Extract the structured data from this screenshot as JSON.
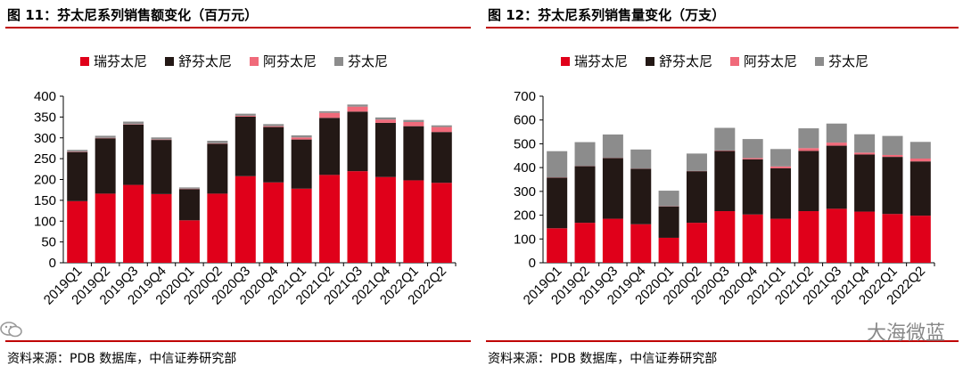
{
  "panels": [
    {
      "title": "图 11：芬太尼系列销售额变化（百万元）",
      "source": "资料来源：PDB 数据库，中信证券研究部"
    },
    {
      "title": "图 12：芬太尼系列销售量变化（万支）",
      "source": "资料来源：PDB 数据库，中信证券研究部"
    }
  ],
  "watermark": "大海微蓝",
  "colors": {
    "瑞芬太尼": "#e0001a",
    "舒芬太尼": "#231815",
    "阿芬太尼": "#f06a7a",
    "芬太尼": "#8c8c8c"
  },
  "chart_data": [
    {
      "type": "bar",
      "stacked": true,
      "title": "图 11：芬太尼系列销售额变化（百万元）",
      "categories": [
        "2019Q1",
        "2019Q2",
        "2019Q3",
        "2019Q4",
        "2020Q1",
        "2020Q2",
        "2020Q3",
        "2020Q4",
        "2021Q1",
        "2021Q2",
        "2021Q3",
        "2021Q4",
        "2022Q1",
        "2022Q2"
      ],
      "series": [
        {
          "name": "瑞芬太尼",
          "values": [
            148,
            166,
            187,
            165,
            102,
            166,
            208,
            193,
            178,
            211,
            220,
            206,
            198,
            192
          ]
        },
        {
          "name": "舒芬太尼",
          "values": [
            118,
            133,
            145,
            130,
            75,
            120,
            143,
            133,
            118,
            137,
            143,
            130,
            130,
            122
          ]
        },
        {
          "name": "阿芬太尼",
          "values": [
            1,
            1,
            1,
            1,
            1,
            1,
            2,
            2,
            5,
            12,
            12,
            8,
            10,
            12
          ]
        },
        {
          "name": "芬太尼",
          "values": [
            4,
            5,
            6,
            5,
            3,
            6,
            5,
            5,
            5,
            4,
            5,
            5,
            5,
            4
          ]
        }
      ],
      "yticks": [
        0,
        50,
        100,
        150,
        200,
        250,
        300,
        350,
        400
      ],
      "ylim": [
        0,
        400
      ],
      "legend": "top"
    },
    {
      "type": "bar",
      "stacked": true,
      "title": "图 12：芬太尼系列销售量变化（万支）",
      "categories": [
        "2019Q1",
        "2019Q2",
        "2019Q3",
        "2019Q4",
        "2020Q1",
        "2020Q2",
        "2020Q3",
        "2020Q4",
        "2021Q1",
        "2021Q2",
        "2021Q3",
        "2021Q4",
        "2022Q1",
        "2022Q2"
      ],
      "series": [
        {
          "name": "瑞芬太尼",
          "values": [
            145,
            168,
            185,
            162,
            105,
            168,
            217,
            203,
            185,
            217,
            227,
            215,
            205,
            198
          ]
        },
        {
          "name": "舒芬太尼",
          "values": [
            213,
            238,
            255,
            233,
            132,
            217,
            253,
            232,
            212,
            253,
            265,
            240,
            240,
            228
          ]
        },
        {
          "name": "阿芬太尼",
          "values": [
            1,
            1,
            1,
            1,
            1,
            1,
            2,
            5,
            8,
            12,
            13,
            8,
            8,
            12
          ]
        },
        {
          "name": "芬太尼",
          "values": [
            110,
            100,
            98,
            80,
            65,
            73,
            95,
            80,
            73,
            83,
            80,
            77,
            80,
            70
          ]
        }
      ],
      "yticks": [
        0,
        100,
        200,
        300,
        400,
        500,
        600,
        700
      ],
      "ylim": [
        0,
        700
      ],
      "legend": "top"
    }
  ]
}
